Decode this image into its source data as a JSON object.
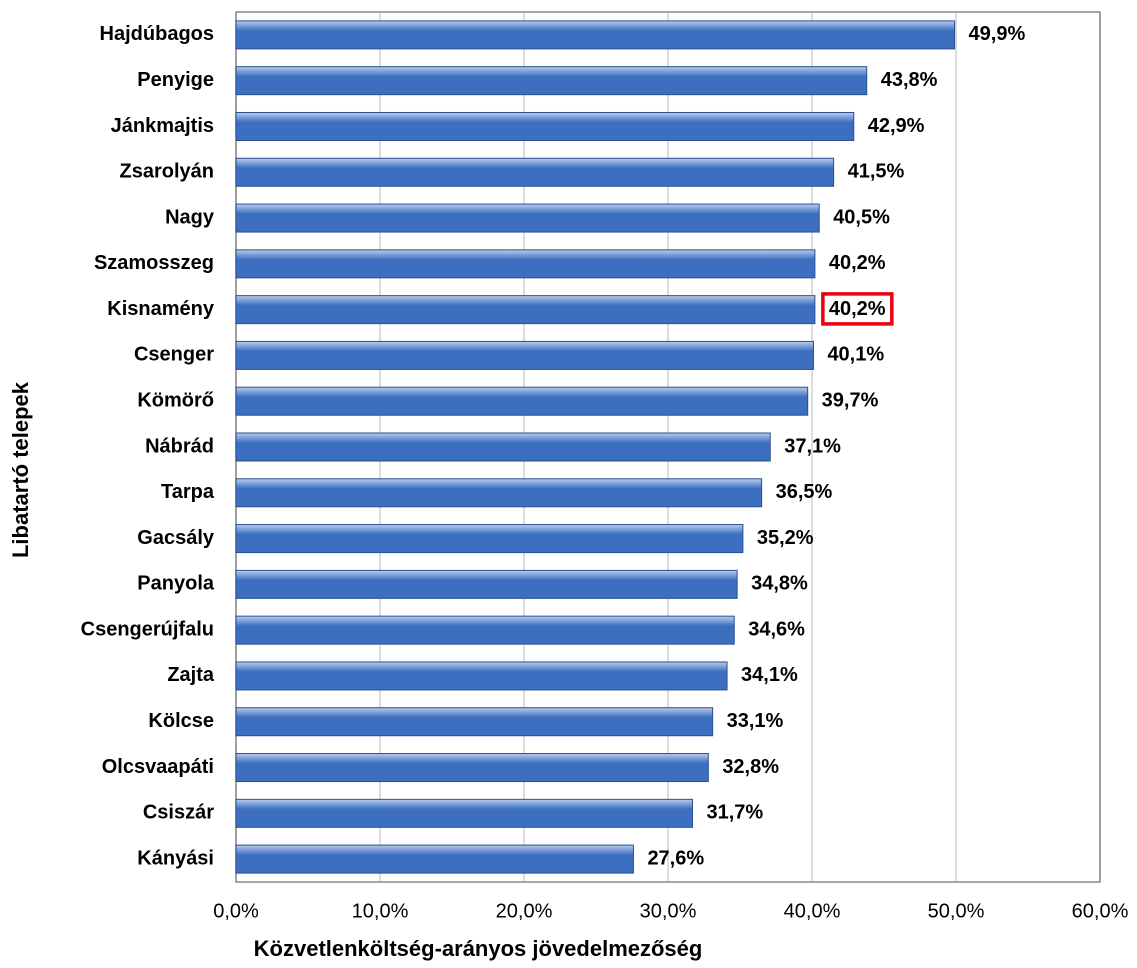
{
  "chart_data": {
    "type": "bar",
    "orientation": "horizontal",
    "xlabel": "Közvetlenköltség-arányos jövedelmezőség",
    "ylabel": "Libatartó telepek",
    "categories": [
      "Hajdúbagos",
      "Penyige",
      "Jánkmajtis",
      "Zsarolyán",
      "Nagy",
      "Szamosszeg",
      "Kisnamény",
      "Csenger",
      "Kömörő",
      "Nábrád",
      "Tarpa",
      "Gacsály",
      "Panyola",
      "Csengerújfalu",
      "Zajta",
      "Kölcse",
      "Olcsvaapáti",
      "Csiszár",
      "Kányási"
    ],
    "values": [
      49.9,
      43.8,
      42.9,
      41.5,
      40.5,
      40.2,
      40.2,
      40.1,
      39.7,
      37.1,
      36.5,
      35.2,
      34.8,
      34.6,
      34.1,
      33.1,
      32.8,
      31.7,
      27.6
    ],
    "value_labels": [
      "49,9%",
      "43,8%",
      "42,9%",
      "41,5%",
      "40,5%",
      "40,2%",
      "40,2%",
      "40,1%",
      "39,7%",
      "37,1%",
      "36,5%",
      "35,2%",
      "34,8%",
      "34,6%",
      "34,1%",
      "33,1%",
      "32,8%",
      "31,7%",
      "27,6%"
    ],
    "color": "#3d6fc0",
    "highlighted_category": "Kisnamény",
    "highlight_color": "#e8000b",
    "xlim": [
      0,
      60
    ],
    "xticks": [
      {
        "value": 0,
        "label": "0,0%"
      },
      {
        "value": 10,
        "label": "10,0%"
      },
      {
        "value": 20,
        "label": "20,0%"
      },
      {
        "value": 30,
        "label": "30,0%"
      },
      {
        "value": 40,
        "label": "40,0%"
      },
      {
        "value": 50,
        "label": "50,0%"
      },
      {
        "value": 60,
        "label": "60,0%"
      }
    ],
    "grid": true
  }
}
